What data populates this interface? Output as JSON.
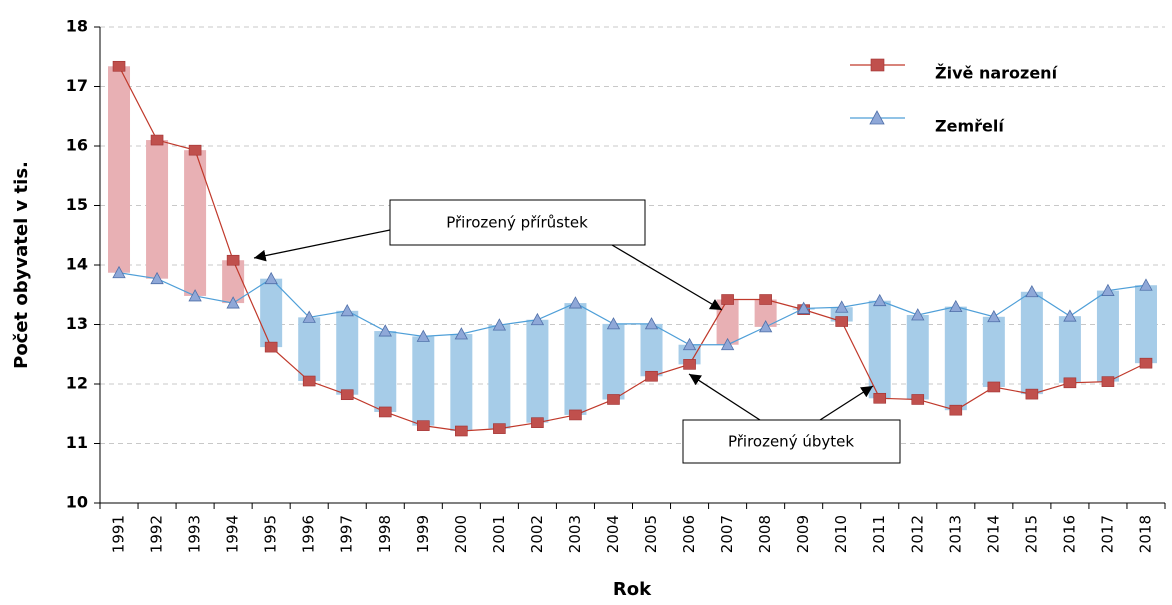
{
  "chart_data": {
    "type": "line",
    "y_axis_label": "Počet obyvatel  v tis.",
    "x_axis_label": "Rok",
    "categories": [
      "1991",
      "1992",
      "1993",
      "1994",
      "1995",
      "1996",
      "1997",
      "1998",
      "1999",
      "2000",
      "2001",
      "2002",
      "2003",
      "2004",
      "2005",
      "2006",
      "2007",
      "2008",
      "2009",
      "2010",
      "2011",
      "2012",
      "2013",
      "2014",
      "2015",
      "2016",
      "2017",
      "2018"
    ],
    "series": [
      {
        "name": "Živě narození",
        "color": "#c0504d",
        "line_color": "#c0392b",
        "values": [
          17.34,
          16.1,
          15.93,
          14.08,
          12.62,
          12.05,
          11.82,
          11.53,
          11.3,
          11.21,
          11.25,
          11.35,
          11.48,
          11.74,
          12.13,
          12.33,
          13.42,
          13.42,
          13.25,
          13.05,
          11.76,
          11.74,
          11.56,
          11.95,
          11.83,
          12.02,
          12.04,
          12.35
        ]
      },
      {
        "name": "Zemřelí",
        "color": "#8fa8d8",
        "line_color": "#4f9fd8",
        "values": [
          13.87,
          13.77,
          13.48,
          13.36,
          13.77,
          13.12,
          13.23,
          12.89,
          12.8,
          12.84,
          12.99,
          13.08,
          13.36,
          13.01,
          13.01,
          12.66,
          12.66,
          12.96,
          13.27,
          13.29,
          13.4,
          13.16,
          13.3,
          13.13,
          13.55,
          13.14,
          13.57,
          13.66
        ]
      }
    ],
    "fill_colors": {
      "increase": "#e8b0b4",
      "decrease": "#a6cce8"
    },
    "annotations": [
      "Přirozený přírůstek",
      "Přirozený úbytek"
    ],
    "ylim": [
      10,
      18
    ],
    "yticks": [
      10,
      11,
      12,
      13,
      14,
      15,
      16,
      17,
      18
    ],
    "grid": true
  }
}
